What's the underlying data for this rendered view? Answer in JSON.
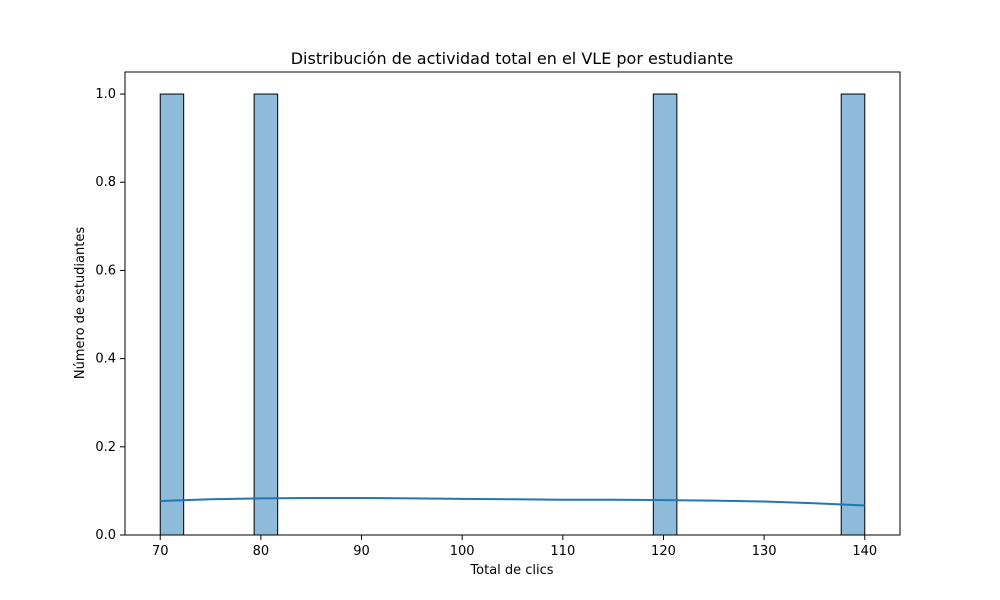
{
  "chart_data": {
    "type": "bar",
    "title": "Distribución de actividad total en el VLE por estudiante",
    "xlabel": "Total de clics",
    "ylabel": "Número de estudiantes",
    "xlim": [
      66.5,
      143.5
    ],
    "ylim": [
      0,
      1.05
    ],
    "x_ticks": [
      70,
      80,
      90,
      100,
      110,
      120,
      130,
      140
    ],
    "y_ticks": [
      0.0,
      0.2,
      0.4,
      0.6,
      0.8,
      1.0
    ],
    "x_tick_labels": [
      "70",
      "80",
      "90",
      "100",
      "110",
      "120",
      "130",
      "140"
    ],
    "y_tick_labels": [
      "0.0",
      "0.2",
      "0.4",
      "0.6",
      "0.8",
      "1.0"
    ],
    "bars": [
      {
        "x_start": 70.0,
        "x_end": 72.33,
        "value": 1
      },
      {
        "x_start": 79.33,
        "x_end": 81.67,
        "value": 1
      },
      {
        "x_start": 118.99,
        "x_end": 121.33,
        "value": 1
      },
      {
        "x_start": 137.66,
        "x_end": 140.0,
        "value": 1
      }
    ],
    "bar_fill": "#8fbbda",
    "bar_edge": "#000000",
    "kde_color": "#1f77b4",
    "kde": {
      "x": [
        70,
        75,
        80,
        85,
        90,
        95,
        100,
        105,
        110,
        115,
        120,
        125,
        130,
        135,
        140
      ],
      "y": [
        0.077,
        0.081,
        0.083,
        0.084,
        0.084,
        0.083,
        0.082,
        0.081,
        0.08,
        0.08,
        0.079,
        0.078,
        0.076,
        0.072,
        0.067
      ]
    },
    "grid": false,
    "legend": "none"
  }
}
